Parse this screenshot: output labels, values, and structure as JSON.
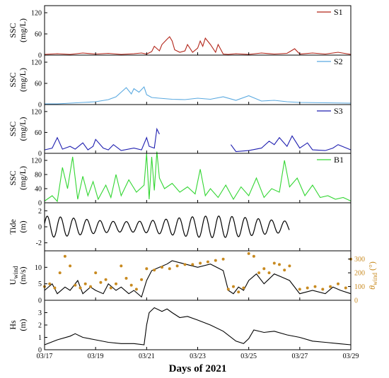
{
  "chart_data": {
    "type": "line",
    "xlabel": "Days of 2021",
    "x_ticks": [
      "03/17",
      "03/19",
      "03/21",
      "03/23",
      "03/25",
      "03/27",
      "03/29"
    ],
    "xlim": [
      17,
      29
    ],
    "panels": [
      {
        "id": "s1",
        "ylabel": [
          "SSC",
          "(mg/L)"
        ],
        "yticks": [
          "0",
          "60",
          "120"
        ],
        "ylim": [
          0,
          140
        ],
        "series": [
          {
            "name": "S1",
            "color": "#b22418",
            "x": [
              17.0,
              17.5,
              18.0,
              18.5,
              19.0,
              19.5,
              20.0,
              20.5,
              20.8,
              21.0,
              21.2,
              21.3,
              21.5,
              21.6,
              21.8,
              21.9,
              22.0,
              22.1,
              22.3,
              22.5,
              22.6,
              22.8,
              23.0,
              23.1,
              23.2,
              23.3,
              23.5,
              23.7,
              23.8,
              24.0,
              24.2,
              24.5,
              25.0,
              25.5,
              26.0,
              26.5,
              26.8,
              27.0,
              27.5,
              28.0,
              28.5,
              29.0
            ],
            "y": [
              2,
              4,
              2,
              6,
              3,
              5,
              2,
              4,
              6,
              3,
              10,
              25,
              12,
              30,
              45,
              52,
              40,
              15,
              8,
              12,
              30,
              8,
              20,
              40,
              25,
              48,
              30,
              8,
              30,
              3,
              2,
              4,
              2,
              6,
              3,
              5,
              18,
              3,
              6,
              3,
              8,
              2
            ]
          }
        ]
      },
      {
        "id": "s2",
        "ylabel": [
          "SSC",
          "(mg/L)"
        ],
        "yticks": [
          "0",
          "60",
          "120"
        ],
        "ylim": [
          0,
          140
        ],
        "series": [
          {
            "name": "S2",
            "color": "#5aa9e0",
            "x": [
              17.0,
              17.5,
              18.0,
              18.5,
              19.0,
              19.5,
              19.8,
              20.0,
              20.2,
              20.4,
              20.5,
              20.7,
              20.9,
              21.0,
              21.2,
              21.5,
              22.0,
              22.5,
              23.0,
              23.5,
              24.0,
              24.5,
              25.0,
              25.5,
              26.0,
              26.5,
              27.0,
              28.0,
              29.0
            ],
            "y": [
              2,
              2,
              4,
              6,
              8,
              14,
              22,
              35,
              48,
              30,
              45,
              35,
              50,
              28,
              20,
              18,
              15,
              14,
              18,
              15,
              22,
              12,
              25,
              10,
              12,
              8,
              6,
              5,
              4
            ]
          }
        ]
      },
      {
        "id": "s3",
        "ylabel": [
          "SSC",
          "(mg/L)"
        ],
        "yticks": [
          "0",
          "60",
          "120"
        ],
        "ylim": [
          0,
          140
        ],
        "series": [
          {
            "name": "S3",
            "color": "#1f1fb0",
            "x": [
              17.0,
              17.3,
              17.5,
              17.7,
              18.0,
              18.2,
              18.5,
              18.7,
              18.9,
              19.0,
              19.3,
              19.5,
              19.7,
              20.0,
              20.5,
              20.8,
              21.0,
              21.1,
              21.3,
              21.4,
              21.5,
              null,
              24.3,
              24.5,
              25.0,
              25.5,
              25.8,
              26.0,
              26.2,
              26.5,
              26.7,
              27.0,
              27.3,
              27.5,
              28.0,
              28.3,
              28.5,
              29.0
            ],
            "y": [
              10,
              15,
              45,
              12,
              20,
              12,
              30,
              10,
              20,
              40,
              15,
              10,
              25,
              8,
              15,
              10,
              45,
              20,
              15,
              70,
              55,
              null,
              25,
              5,
              8,
              15,
              35,
              25,
              45,
              20,
              50,
              15,
              30,
              10,
              8,
              15,
              25,
              10
            ]
          }
        ]
      },
      {
        "id": "b1",
        "ylabel": [
          "SSC",
          "(mg/L)"
        ],
        "yticks": [
          "0",
          "40",
          "80",
          "120"
        ],
        "ylim": [
          0,
          140
        ],
        "series": [
          {
            "name": "B1",
            "color": "#33d633",
            "x": [
              17.0,
              17.3,
              17.5,
              17.7,
              17.9,
              18.1,
              18.3,
              18.5,
              18.7,
              18.9,
              19.1,
              19.4,
              19.6,
              19.8,
              20.0,
              20.3,
              20.6,
              20.9,
              21.0,
              21.1,
              21.2,
              21.3,
              21.4,
              21.5,
              21.7,
              22.0,
              22.3,
              22.6,
              22.9,
              23.1,
              23.3,
              23.5,
              23.8,
              24.1,
              24.4,
              24.7,
              25.0,
              25.3,
              25.6,
              25.9,
              26.2,
              26.4,
              26.6,
              26.9,
              27.2,
              27.5,
              27.8,
              28.1,
              28.4,
              28.7,
              29.0
            ],
            "y": [
              5,
              20,
              4,
              100,
              40,
              130,
              10,
              75,
              20,
              60,
              10,
              50,
              15,
              80,
              20,
              65,
              30,
              50,
              140,
              10,
              130,
              35,
              145,
              70,
              40,
              55,
              30,
              45,
              25,
              95,
              20,
              40,
              15,
              50,
              10,
              45,
              20,
              70,
              15,
              40,
              30,
              120,
              45,
              70,
              20,
              50,
              15,
              20,
              10,
              15,
              5
            ]
          }
        ]
      },
      {
        "id": "tide",
        "ylabel": [
          "Tide",
          "(m)"
        ],
        "yticks": [
          "-2",
          "0",
          "2"
        ],
        "ylim": [
          -3,
          3
        ],
        "tide": {
          "start": 17.0,
          "end": 26.6,
          "period": 0.517,
          "amplitude_mean": 1.0,
          "amplitude_mod": 0.35,
          "mod_period": 14.0,
          "mod_phase": 0.3
        }
      },
      {
        "id": "wind",
        "ylabel": [
          "U",
          "wind",
          "(m/s)"
        ],
        "yticks": [
          "0",
          "5",
          "10"
        ],
        "ylim": [
          0,
          15
        ],
        "right_ylabel": [
          "θ",
          "wind",
          "(°)"
        ],
        "right_yticks": [
          "0",
          "100",
          "200",
          "300"
        ],
        "right_ylim": [
          0,
          360
        ],
        "series": [
          {
            "name": "U_wind",
            "color": "#000000",
            "x": [
              17.0,
              17.3,
              17.5,
              17.8,
              18.0,
              18.3,
              18.5,
              18.8,
              19.0,
              19.3,
              19.5,
              19.8,
              20.0,
              20.3,
              20.5,
              20.8,
              21.0,
              21.2,
              21.5,
              21.8,
              22.0,
              22.5,
              23.0,
              23.5,
              24.0,
              24.2,
              24.4,
              24.6,
              24.8,
              25.0,
              25.3,
              25.6,
              26.0,
              26.3,
              26.6,
              27.0,
              27.5,
              28.0,
              28.3,
              28.6,
              29.0
            ],
            "y": [
              3,
              5,
              2,
              4,
              3,
              6,
              2,
              4,
              3,
              2,
              5,
              3,
              4,
              2,
              3,
              1,
              6,
              9,
              10,
              11,
              12,
              11,
              10,
              11,
              9,
              3,
              2,
              4,
              3,
              6,
              8,
              5,
              8,
              7,
              6,
              2,
              3,
              2,
              4,
              3,
              2
            ]
          }
        ],
        "direction": {
          "name": "theta_wind",
          "color": "#c88a20",
          "x": [
            17.0,
            17.2,
            17.4,
            17.6,
            17.8,
            18.0,
            18.2,
            18.4,
            18.6,
            18.8,
            19.0,
            19.2,
            19.4,
            19.6,
            19.8,
            20.0,
            20.2,
            20.4,
            20.6,
            20.8,
            21.0,
            21.3,
            21.6,
            21.9,
            22.2,
            22.5,
            22.8,
            23.1,
            23.4,
            23.7,
            24.0,
            24.2,
            24.4,
            24.6,
            24.8,
            25.0,
            25.2,
            25.4,
            25.6,
            25.8,
            26.0,
            26.2,
            26.4,
            26.6,
            27.0,
            27.3,
            27.6,
            27.9,
            28.2,
            28.5,
            28.8,
            29.0
          ],
          "y": [
            100,
            120,
            90,
            200,
            320,
            250,
            110,
            90,
            120,
            100,
            200,
            130,
            150,
            90,
            120,
            250,
            160,
            110,
            80,
            150,
            230,
            220,
            240,
            230,
            250,
            260,
            260,
            270,
            280,
            290,
            300,
            80,
            100,
            60,
            90,
            340,
            320,
            200,
            230,
            200,
            270,
            260,
            220,
            250,
            80,
            90,
            100,
            80,
            100,
            120,
            90,
            300
          ]
        }
      },
      {
        "id": "hs",
        "ylabel": [
          "Hs",
          "(m)"
        ],
        "yticks": [
          "0",
          "1",
          "2",
          "3"
        ],
        "ylim": [
          0,
          4
        ],
        "series": [
          {
            "name": "Hs",
            "color": "#000000",
            "x": [
              17.0,
              17.5,
              18.0,
              18.2,
              18.5,
              19.0,
              19.5,
              20.0,
              20.5,
              20.9,
              21.0,
              21.1,
              21.3,
              21.6,
              21.8,
              22.0,
              22.3,
              22.6,
              23.0,
              23.5,
              24.0,
              24.5,
              24.8,
              25.0,
              25.2,
              25.6,
              26.0,
              26.5,
              27.0,
              27.5,
              28.0,
              28.5,
              29.0
            ],
            "y": [
              0.4,
              0.8,
              1.1,
              1.3,
              1.0,
              0.8,
              0.6,
              0.5,
              0.5,
              0.4,
              2.0,
              3.0,
              3.4,
              3.1,
              3.3,
              3.0,
              2.6,
              2.7,
              2.4,
              2.0,
              1.5,
              0.7,
              0.5,
              0.9,
              1.6,
              1.4,
              1.5,
              1.2,
              1.0,
              0.7,
              0.6,
              0.5,
              0.4
            ]
          }
        ]
      }
    ]
  }
}
